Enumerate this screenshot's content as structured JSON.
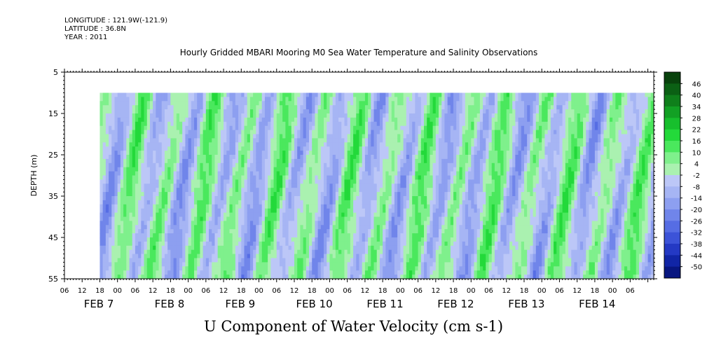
{
  "header": {
    "longitude": "LONGITUDE : 121.9W(-121.9)",
    "latitude": "LATITUDE : 36.8N",
    "year": "YEAR : 2011"
  },
  "chart_data": {
    "type": "heatmap",
    "title": "Hourly Gridded MBARI Mooring M0 Sea Water Temperature and Salinity Observations",
    "bottom_title": "U Component of Water Velocity (cm s-1)",
    "ylabel": "DEPTH (m)",
    "ylim": [
      55,
      5
    ],
    "y_ticks": [
      "5",
      "15",
      "25",
      "35",
      "45",
      "55"
    ],
    "data_depth_range": [
      10,
      55
    ],
    "x_hour_ticks": [
      "06",
      "12",
      "18",
      "00",
      "06",
      "12",
      "18",
      "00",
      "06",
      "12",
      "18",
      "00",
      "06",
      "12",
      "18",
      "00",
      "06",
      "12",
      "18",
      "00",
      "06",
      "12",
      "18",
      "00",
      "06",
      "12",
      "18",
      "00",
      "06",
      "12",
      "18",
      "00",
      "06"
    ],
    "x_day_labels": [
      "FEB  7",
      "FEB  8",
      "FEB  9",
      "FEB 10",
      "FEB 11",
      "FEB 12",
      "FEB 13",
      "FEB 14"
    ],
    "time_range_hours": [
      0,
      200
    ],
    "data_start_hour": 12,
    "colorbar": {
      "levels": [
        "46",
        "40",
        "34",
        "28",
        "22",
        "16",
        "10",
        "4",
        "-2",
        "-8",
        "-14",
        "-20",
        "-26",
        "-32",
        "-38",
        "-44",
        "-50"
      ],
      "colors": [
        "#08420c",
        "#0b6014",
        "#0f7f1b",
        "#12a024",
        "#17bf2d",
        "#23d93a",
        "#4ae85d",
        "#7ff08c",
        "#aaf1b0",
        "#bcc7f7",
        "#a6b5f4",
        "#8d9ff0",
        "#7085ea",
        "#566de4",
        "#3c53d8",
        "#2439c4",
        "#1125a6",
        "#081680"
      ]
    },
    "u_velocity_pattern_cm_s": {
      "note": "Alternating positive (green) and negative (blue) bands; values approx in range -26 to 22",
      "day_peaks": [
        {
          "day": "FEB 7",
          "u_max": 16,
          "u_min": -14
        },
        {
          "day": "FEB 8",
          "u_max": 22,
          "u_min": -20
        },
        {
          "day": "FEB 9",
          "u_max": 22,
          "u_min": -20
        },
        {
          "day": "FEB 10",
          "u_max": 16,
          "u_min": -20
        },
        {
          "day": "FEB 11",
          "u_max": 22,
          "u_min": -20
        },
        {
          "day": "FEB 12",
          "u_max": 22,
          "u_min": -26
        },
        {
          "day": "FEB 13",
          "u_max": 16,
          "u_min": -26
        }
      ]
    }
  }
}
